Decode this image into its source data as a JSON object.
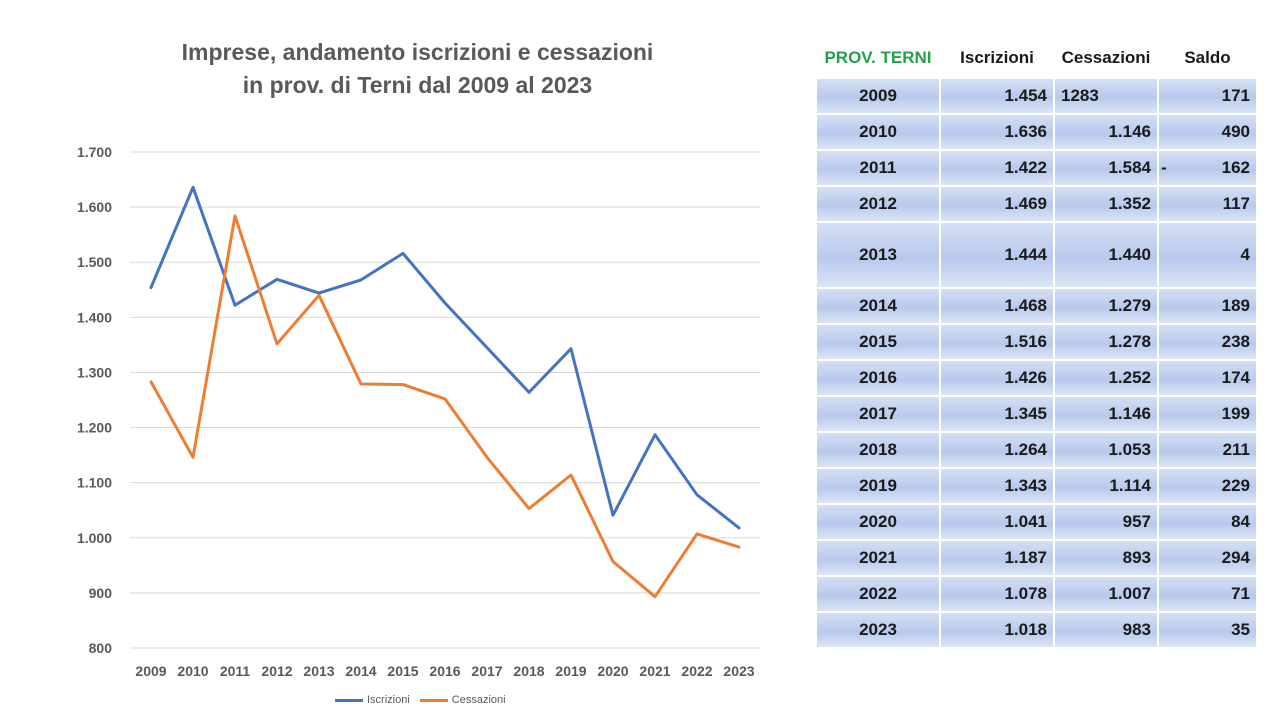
{
  "chart_data": {
    "type": "line",
    "title": "Imprese, andamento iscrizioni e cessazioni in prov. di Terni dal 2009 al 2023",
    "title_lines": [
      "Imprese, andamento iscrizioni e cessazioni",
      "in prov. di Terni dal 2009 al 2023"
    ],
    "categories": [
      "2009",
      "2010",
      "2011",
      "2012",
      "2013",
      "2014",
      "2015",
      "2016",
      "2017",
      "2018",
      "2019",
      "2020",
      "2021",
      "2022",
      "2023"
    ],
    "series": [
      {
        "name": "Iscrizioni",
        "color": "#4472c4",
        "values": [
          1454,
          1636,
          1422,
          1469,
          1444,
          1468,
          1516,
          1426,
          1345,
          1264,
          1343,
          1041,
          1187,
          1078,
          1018
        ]
      },
      {
        "name": "Cessazioni",
        "color": "#ed7d31",
        "values": [
          1283,
          1146,
          1584,
          1352,
          1440,
          1279,
          1278,
          1252,
          1146,
          1053,
          1114,
          957,
          893,
          1007,
          983
        ]
      }
    ],
    "y_ticks": [
      "1.700",
      "1.600",
      "1.500",
      "1.400",
      "1.300",
      "1.200",
      "1.100",
      "1.000",
      "900",
      "800"
    ],
    "ylim": [
      800,
      1700
    ],
    "grid": true,
    "legend": "bottom"
  },
  "table": {
    "headers": [
      "PROV. TERNI",
      "Iscrizioni",
      "Cessazioni",
      "Saldo"
    ],
    "rows": [
      {
        "anno": "2009",
        "iscrizioni": "1.454",
        "cessazioni": "1283",
        "saldo": "171",
        "neg": ""
      },
      {
        "anno": "2010",
        "iscrizioni": "1.636",
        "cessazioni": "1.146",
        "saldo": "490",
        "neg": ""
      },
      {
        "anno": "2011",
        "iscrizioni": "1.422",
        "cessazioni": "1.584",
        "saldo": "162",
        "neg": "-"
      },
      {
        "anno": "2012",
        "iscrizioni": "1.469",
        "cessazioni": "1.352",
        "saldo": "117",
        "neg": ""
      },
      {
        "anno": "2013",
        "iscrizioni": "1.444",
        "cessazioni": "1.440",
        "saldo": "4",
        "neg": ""
      },
      {
        "anno": "2014",
        "iscrizioni": "1.468",
        "cessazioni": "1.279",
        "saldo": "189",
        "neg": ""
      },
      {
        "anno": "2015",
        "iscrizioni": "1.516",
        "cessazioni": "1.278",
        "saldo": "238",
        "neg": ""
      },
      {
        "anno": "2016",
        "iscrizioni": "1.426",
        "cessazioni": "1.252",
        "saldo": "174",
        "neg": ""
      },
      {
        "anno": "2017",
        "iscrizioni": "1.345",
        "cessazioni": "1.146",
        "saldo": "199",
        "neg": ""
      },
      {
        "anno": "2018",
        "iscrizioni": "1.264",
        "cessazioni": "1.053",
        "saldo": "211",
        "neg": ""
      },
      {
        "anno": "2019",
        "iscrizioni": "1.343",
        "cessazioni": "1.114",
        "saldo": "229",
        "neg": ""
      },
      {
        "anno": "2020",
        "iscrizioni": "1.041",
        "cessazioni": "957",
        "saldo": "84",
        "neg": ""
      },
      {
        "anno": "2021",
        "iscrizioni": "1.187",
        "cessazioni": "893",
        "saldo": "294",
        "neg": ""
      },
      {
        "anno": "2022",
        "iscrizioni": "1.078",
        "cessazioni": "1.007",
        "saldo": "71",
        "neg": ""
      },
      {
        "anno": "2023",
        "iscrizioni": "1.018",
        "cessazioni": "983",
        "saldo": "35",
        "neg": ""
      }
    ]
  },
  "colors": {
    "prov_header": "#22a04a",
    "row_gradient": [
      "#d6e0f4",
      "#b8c9ec"
    ],
    "gridline": "#d9d9d9",
    "axis_text": "#595959"
  }
}
